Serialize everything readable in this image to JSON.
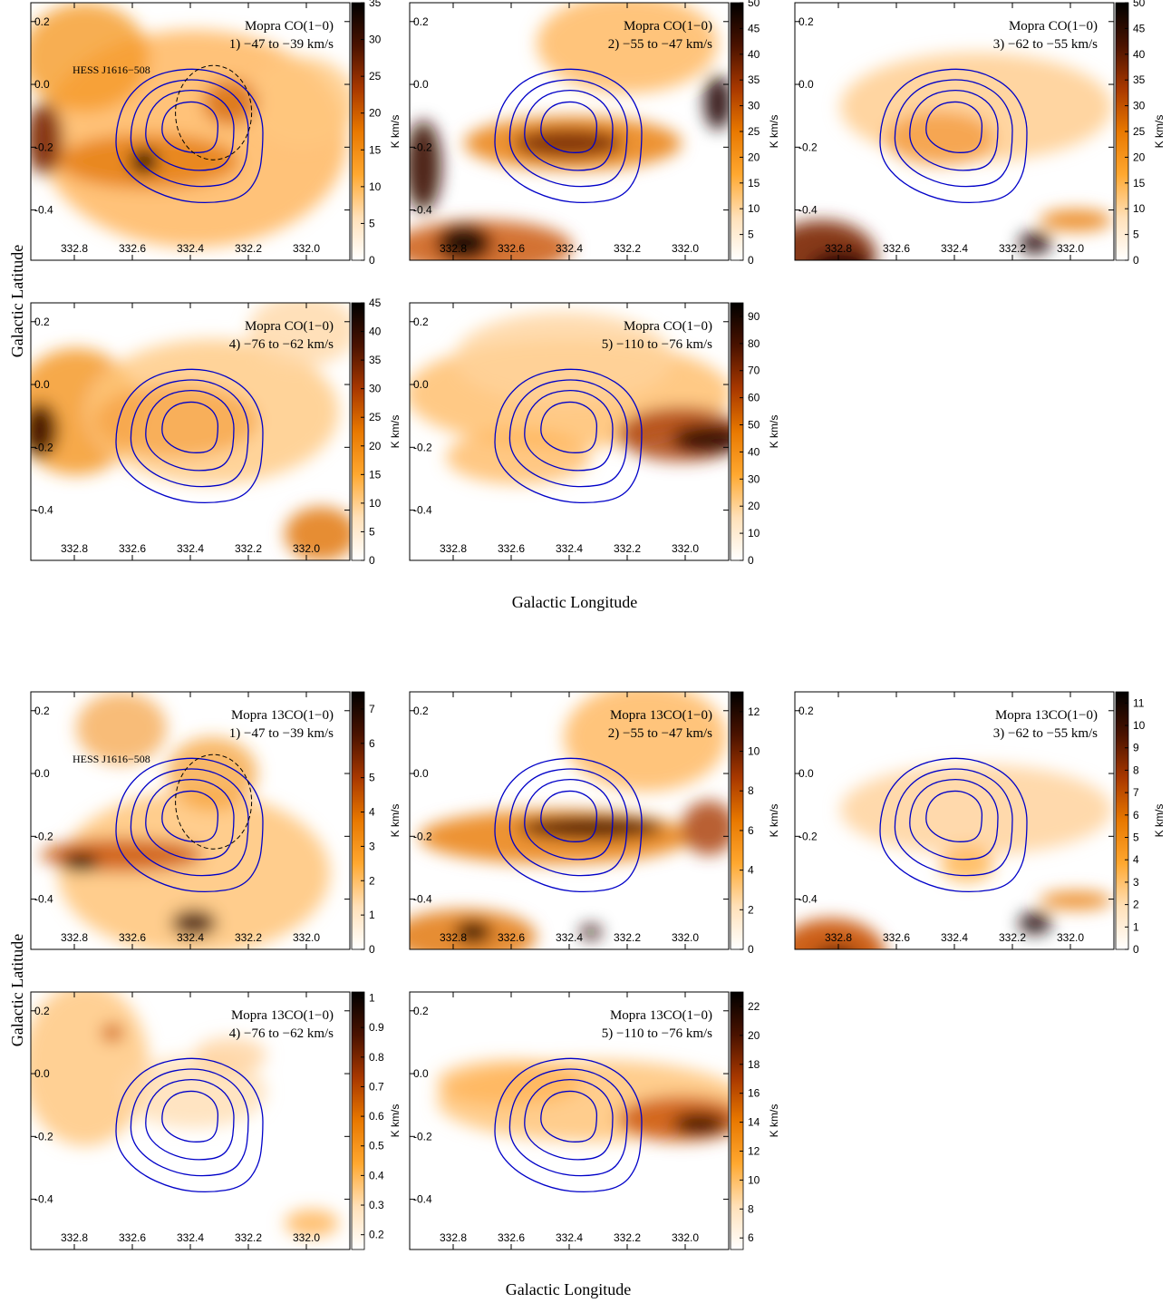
{
  "chart_data": {
    "type": "heatmap",
    "colormap": [
      "#ffffff",
      "#ffe0b8",
      "#ffa830",
      "#e87800",
      "#a83800",
      "#4a1200",
      "#000000"
    ],
    "contour_color": "#0000c8",
    "source_marker": "dashed circle",
    "xlabel": "Galactic Longitude",
    "ylabel": "Galactic Latitude",
    "colorbar_unit": "K km/s",
    "xlim": [
      332.95,
      331.85
    ],
    "ylim": [
      -0.56,
      0.26
    ],
    "x_ticks": [
      "332.8",
      "332.6",
      "332.4",
      "332.2",
      "332.0"
    ],
    "y_ticks": [
      "0.2",
      "0.0",
      "-0.2",
      "-0.4"
    ],
    "source_label": "HESS J1616−508",
    "sections": [
      {
        "tracer": "Mopra CO(1−0)",
        "panels": [
          {
            "title": "Mopra CO(1−0)",
            "range": "1) −47 to −39 km/s",
            "cb_ticks": [
              "0",
              "5",
              "10",
              "15",
              "20",
              "25",
              "30",
              "35"
            ],
            "cb_max": 35,
            "show_source": true
          },
          {
            "title": "Mopra CO(1−0)",
            "range": "2) −55 to −47 km/s",
            "cb_ticks": [
              "0",
              "5",
              "10",
              "15",
              "20",
              "25",
              "30",
              "35",
              "40",
              "45",
              "50"
            ],
            "cb_max": 50,
            "show_source": false
          },
          {
            "title": "Mopra CO(1−0)",
            "range": "3) −62 to −55 km/s",
            "cb_ticks": [
              "0",
              "5",
              "10",
              "15",
              "20",
              "25",
              "30",
              "35",
              "40",
              "45",
              "50"
            ],
            "cb_max": 50,
            "show_source": false
          },
          {
            "title": "Mopra CO(1−0)",
            "range": "4) −76 to −62 km/s",
            "cb_ticks": [
              "0",
              "5",
              "10",
              "15",
              "20",
              "25",
              "30",
              "35",
              "40",
              "45"
            ],
            "cb_max": 45,
            "show_source": false
          },
          {
            "title": "Mopra CO(1−0)",
            "range": "5) −110 to −76 km/s",
            "cb_ticks": [
              "0",
              "10",
              "20",
              "30",
              "40",
              "50",
              "60",
              "70",
              "80",
              "90"
            ],
            "cb_max": 95,
            "show_source": false
          }
        ]
      },
      {
        "tracer": "Mopra 13CO(1−0)",
        "panels": [
          {
            "title": "Mopra 13CO(1−0)",
            "range": "1) −47 to −39 km/s",
            "cb_ticks": [
              "0",
              "1",
              "2",
              "3",
              "4",
              "5",
              "6",
              "7"
            ],
            "cb_max": 7.5,
            "show_source": true
          },
          {
            "title": "Mopra 13CO(1−0)",
            "range": "2) −55 to −47 km/s",
            "cb_ticks": [
              "0",
              "2",
              "4",
              "6",
              "8",
              "10",
              "12"
            ],
            "cb_max": 13,
            "show_source": false
          },
          {
            "title": "Mopra 13CO(1−0)",
            "range": "3) −62 to −55 km/s",
            "cb_ticks": [
              "0",
              "1",
              "2",
              "3",
              "4",
              "5",
              "6",
              "7",
              "8",
              "9",
              "10",
              "11"
            ],
            "cb_max": 11.5,
            "show_source": false
          },
          {
            "title": "Mopra 13CO(1−0)",
            "range": "4) −76 to −62 km/s",
            "cb_ticks": [
              "0.2",
              "0.3",
              "0.4",
              "0.5",
              "0.6",
              "0.7",
              "0.8",
              "0.9",
              "1"
            ],
            "cb_min": 0.15,
            "cb_max": 1.02,
            "show_source": false
          },
          {
            "title": "Mopra 13CO(1−0)",
            "range": "5) −110 to −76 km/s",
            "cb_ticks": [
              "6",
              "8",
              "10",
              "12",
              "14",
              "16",
              "18",
              "20",
              "22"
            ],
            "cb_min": 5.2,
            "cb_max": 23,
            "show_source": false
          }
        ]
      }
    ]
  }
}
